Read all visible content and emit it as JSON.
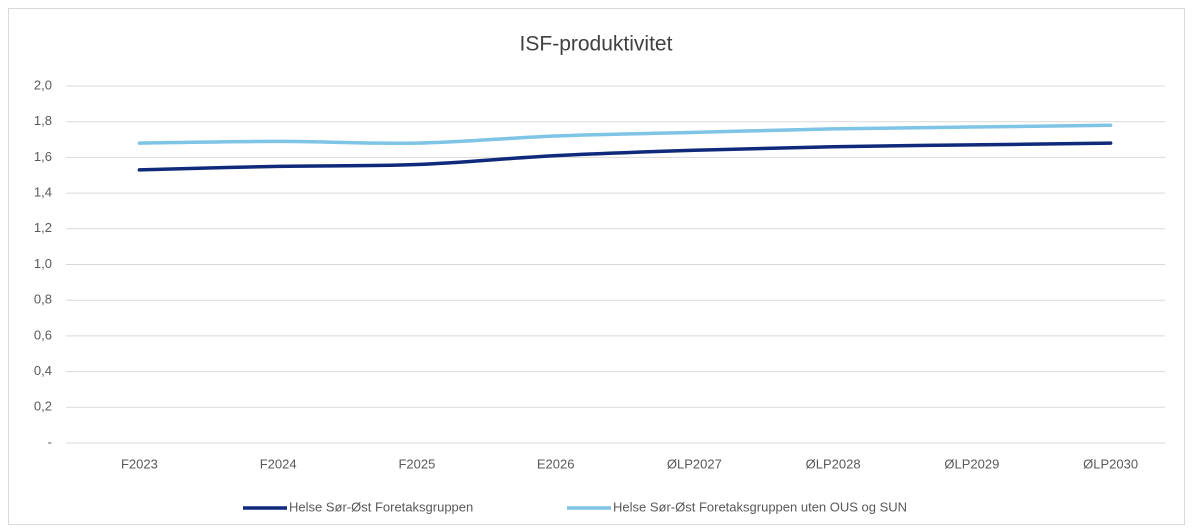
{
  "chart_data": {
    "type": "line",
    "title": "ISF-produktivitet",
    "categories": [
      "F2023",
      "F2024",
      "F2025",
      "E2026",
      "ØLP2027",
      "ØLP2028",
      "ØLP2029",
      "ØLP2030"
    ],
    "series": [
      {
        "name": "Helse Sør-Øst Foretaksgruppen",
        "color": "#0f2a7a",
        "values": [
          1.53,
          1.55,
          1.56,
          1.61,
          1.64,
          1.66,
          1.67,
          1.68
        ]
      },
      {
        "name": "Helse Sør-Øst Foretaksgruppen uten OUS og SUN",
        "color": "#7ec4e6",
        "values": [
          1.68,
          1.69,
          1.68,
          1.72,
          1.74,
          1.76,
          1.77,
          1.78
        ]
      }
    ],
    "ylim": [
      0,
      2.0
    ],
    "yticks": [
      {
        "value": 0,
        "label": "-"
      },
      {
        "value": 0.2,
        "label": "0,2"
      },
      {
        "value": 0.4,
        "label": "0,4"
      },
      {
        "value": 0.6,
        "label": "0,6"
      },
      {
        "value": 0.8,
        "label": "0,8"
      },
      {
        "value": 1.0,
        "label": "1,0"
      },
      {
        "value": 1.2,
        "label": "1,2"
      },
      {
        "value": 1.4,
        "label": "1,4"
      },
      {
        "value": 1.6,
        "label": "1,6"
      },
      {
        "value": 1.8,
        "label": "1,8"
      },
      {
        "value": 2.0,
        "label": "2,0"
      }
    ],
    "grid": true,
    "legend": "bottom"
  }
}
